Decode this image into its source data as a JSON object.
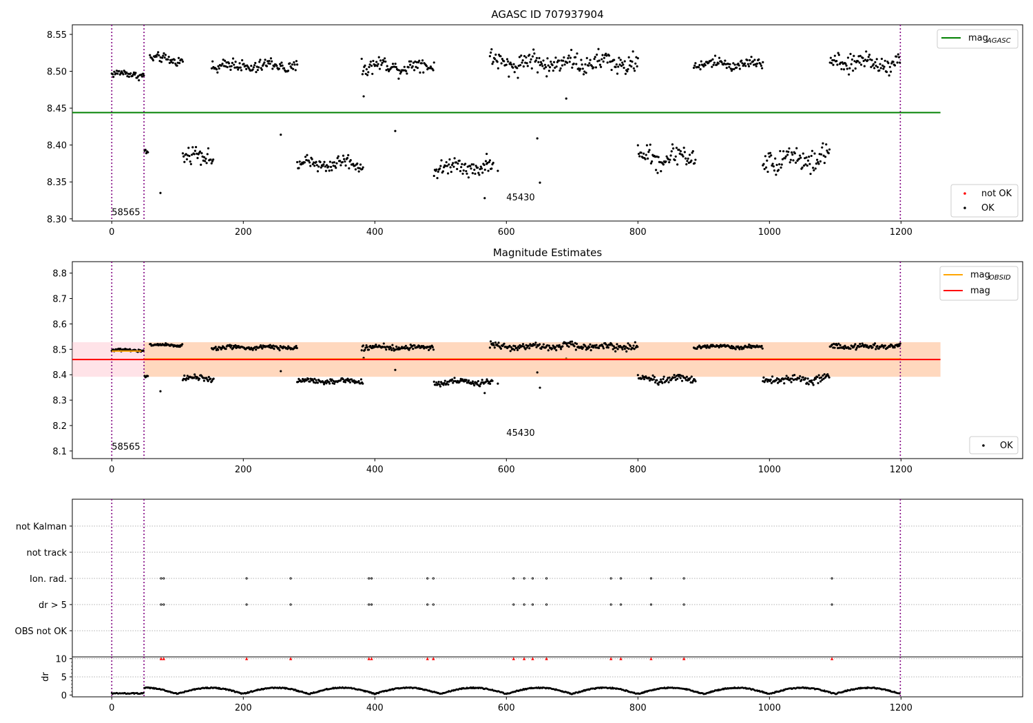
{
  "chart_data": [
    {
      "type": "scatter",
      "title": "AGASC ID 707937904",
      "xlabel": "",
      "ylabel": "",
      "xlim": [
        -60,
        1385
      ],
      "ylim": [
        8.297,
        8.563
      ],
      "xticks": [
        0,
        200,
        400,
        600,
        800,
        1000,
        1200
      ],
      "yticks": [
        8.3,
        8.35,
        8.4,
        8.45,
        8.5,
        8.55
      ],
      "ytick_labels": [
        "8.30",
        "8.35",
        "8.40",
        "8.45",
        "8.50",
        "8.55"
      ],
      "vlines": [
        0,
        49,
        1199
      ],
      "vline_color": "#800080",
      "hline": {
        "name": "mag_AGASC",
        "y": 8.444,
        "x": [
          -60,
          1260
        ],
        "color": "#008000"
      },
      "annotations": [
        {
          "text": "58565",
          "x": 0,
          "y": 8.305
        },
        {
          "text": "45430",
          "x": 600,
          "y": 8.325
        }
      ],
      "legend_top": [
        {
          "label": "mag",
          "sub": "AGASC",
          "color": "#008000"
        }
      ],
      "legend_bottom": [
        {
          "label": "not OK",
          "color": "#ff0000"
        },
        {
          "label": "OK",
          "color": "#000000"
        }
      ],
      "grid": false,
      "series": [
        {
          "name": "OK",
          "color": "#000000",
          "segments": [
            {
              "x": [
                0,
                49
              ],
              "lo": 8.487,
              "hi": 8.505
            },
            {
              "x": [
                50,
                55
              ],
              "lo": 8.383,
              "hi": 8.402
            },
            {
              "x": [
                58,
                108
              ],
              "lo": 8.505,
              "hi": 8.527
            },
            {
              "x": [
                108,
                155
              ],
              "lo": 8.366,
              "hi": 8.404
            },
            {
              "x": [
                152,
                282
              ],
              "lo": 8.492,
              "hi": 8.522
            },
            {
              "x": [
                282,
                382
              ],
              "lo": 8.358,
              "hi": 8.392
            },
            {
              "x": [
                380,
                490
              ],
              "lo": 8.49,
              "hi": 8.524
            },
            {
              "x": [
                490,
                580
              ],
              "lo": 8.352,
              "hi": 8.39
            },
            {
              "x": [
                575,
                800
              ],
              "lo": 8.488,
              "hi": 8.535
            },
            {
              "x": [
                800,
                888
              ],
              "lo": 8.358,
              "hi": 8.409
            },
            {
              "x": [
                885,
                990
              ],
              "lo": 8.498,
              "hi": 8.522
            },
            {
              "x": [
                990,
                1092
              ],
              "lo": 8.354,
              "hi": 8.409
            },
            {
              "x": [
                1092,
                1199
              ],
              "lo": 8.491,
              "hi": 8.533
            }
          ],
          "outliers": [
            [
              74,
              8.335
            ],
            [
              257,
              8.414
            ],
            [
              383,
              8.466
            ],
            [
              431,
              8.419
            ],
            [
              567,
              8.328
            ],
            [
              587,
              8.365
            ],
            [
              647,
              8.409
            ],
            [
              651,
              8.349
            ],
            [
              691,
              8.463
            ],
            [
              570,
              8.388
            ]
          ]
        },
        {
          "name": "not OK",
          "color": "#ff0000",
          "segments": [],
          "outliers": []
        }
      ]
    },
    {
      "type": "scatter",
      "title": "Magnitude Estimates",
      "xlabel": "",
      "ylabel": "",
      "xlim": [
        -60,
        1385
      ],
      "ylim": [
        8.07,
        8.845
      ],
      "xticks": [
        0,
        200,
        400,
        600,
        800,
        1000,
        1200
      ],
      "yticks": [
        8.1,
        8.2,
        8.3,
        8.4,
        8.5,
        8.6,
        8.7,
        8.8
      ],
      "ytick_labels": [
        "8.1",
        "8.2",
        "8.3",
        "8.4",
        "8.5",
        "8.6",
        "8.7",
        "8.8"
      ],
      "vlines": [
        0,
        49,
        1199
      ],
      "vline_color": "#800080",
      "bands": [
        {
          "name": "mag band",
          "x": [
            -60,
            1260
          ],
          "lo": 8.392,
          "hi": 8.528,
          "color": "#ffc0cb"
        },
        {
          "name": "mag_OBSID band",
          "x": [
            49,
            1260
          ],
          "lo": 8.392,
          "hi": 8.528,
          "color": "#ffa500"
        }
      ],
      "lines": [
        {
          "name": "mag_OBSID",
          "color": "#ffa500",
          "segments": [
            {
              "x": [
                0,
                45
              ],
              "y": 8.493
            },
            {
              "x": [
                49,
                1200
              ],
              "y": 8.462
            }
          ]
        },
        {
          "name": "mag",
          "color": "#ff0000",
          "segments": [
            {
              "x": [
                -60,
                1260
              ],
              "y": 8.46
            }
          ]
        }
      ],
      "annotations": [
        {
          "text": "58565",
          "x": 0,
          "y": 8.105
        },
        {
          "text": "45430",
          "x": 600,
          "y": 8.16
        }
      ],
      "legend_top": [
        {
          "label": "mag",
          "sub": "OBSID",
          "color": "#ffa500"
        },
        {
          "label": "mag",
          "sub": "",
          "color": "#ff0000"
        }
      ],
      "legend_bottom": [
        {
          "label": "OK",
          "color": "#000000"
        }
      ],
      "grid": false,
      "series": [
        {
          "name": "OK",
          "color": "#000000",
          "segments": [
            {
              "x": [
                0,
                49
              ],
              "lo": 8.487,
              "hi": 8.505
            },
            {
              "x": [
                50,
                55
              ],
              "lo": 8.383,
              "hi": 8.402
            },
            {
              "x": [
                58,
                108
              ],
              "lo": 8.505,
              "hi": 8.527
            },
            {
              "x": [
                108,
                155
              ],
              "lo": 8.366,
              "hi": 8.404
            },
            {
              "x": [
                152,
                282
              ],
              "lo": 8.492,
              "hi": 8.522
            },
            {
              "x": [
                282,
                382
              ],
              "lo": 8.358,
              "hi": 8.392
            },
            {
              "x": [
                380,
                490
              ],
              "lo": 8.49,
              "hi": 8.524
            },
            {
              "x": [
                490,
                580
              ],
              "lo": 8.352,
              "hi": 8.39
            },
            {
              "x": [
                575,
                800
              ],
              "lo": 8.488,
              "hi": 8.535
            },
            {
              "x": [
                800,
                888
              ],
              "lo": 8.358,
              "hi": 8.409
            },
            {
              "x": [
                885,
                990
              ],
              "lo": 8.498,
              "hi": 8.522
            },
            {
              "x": [
                990,
                1092
              ],
              "lo": 8.354,
              "hi": 8.409
            },
            {
              "x": [
                1092,
                1199
              ],
              "lo": 8.491,
              "hi": 8.533
            }
          ],
          "outliers": [
            [
              74,
              8.335
            ],
            [
              257,
              8.414
            ],
            [
              383,
              8.466
            ],
            [
              431,
              8.419
            ],
            [
              567,
              8.328
            ],
            [
              587,
              8.365
            ],
            [
              647,
              8.409
            ],
            [
              651,
              8.349
            ],
            [
              691,
              8.463
            ]
          ]
        }
      ]
    },
    {
      "type": "scatter",
      "title": "",
      "xlabel": "",
      "ylabel": "",
      "xlim": [
        -60,
        1385
      ],
      "categories": [
        "not Kalman",
        "not track",
        "Ion. rad.",
        "dr > 5",
        "OBS not OK"
      ],
      "flag_x": {
        "not Kalman": [],
        "not track": [],
        "Ion. rad.": [
          75,
          79,
          205,
          272,
          391,
          395,
          480,
          489,
          611,
          627,
          640,
          661,
          759,
          774,
          820,
          870,
          1095
        ],
        "dr > 5": [
          75,
          79,
          205,
          272,
          391,
          395,
          480,
          489,
          611,
          627,
          640,
          661,
          759,
          774,
          820,
          870,
          1095
        ],
        "OBS not OK": []
      },
      "vlines": [
        0,
        49,
        1199
      ],
      "vline_color": "#800080",
      "grid": true
    },
    {
      "type": "scatter",
      "title": "",
      "xlabel": "",
      "ylabel": "dr",
      "xlim": [
        -60,
        1385
      ],
      "ylim": [
        -0.5,
        10.5
      ],
      "xticks": [
        0,
        200,
        400,
        600,
        800,
        1000,
        1200
      ],
      "yticks": [
        0,
        5,
        10
      ],
      "ytick_labels": [
        "0",
        "5",
        "10"
      ],
      "vlines": [
        0,
        49,
        1199
      ],
      "vline_color": "#800080",
      "hlines": [
        5,
        10
      ],
      "grid": true,
      "series": [
        {
          "name": "dr",
          "color": "#000000",
          "x_range": [
            0,
            1199
          ],
          "y_range": [
            0,
            2.5
          ]
        },
        {
          "name": "dr > 5 (clipped)",
          "color": "#ff0000",
          "marker": "triangle",
          "y": 10,
          "x": [
            75,
            79,
            205,
            272,
            391,
            395,
            480,
            489,
            611,
            627,
            640,
            661,
            759,
            774,
            820,
            870,
            1095
          ]
        }
      ]
    }
  ]
}
